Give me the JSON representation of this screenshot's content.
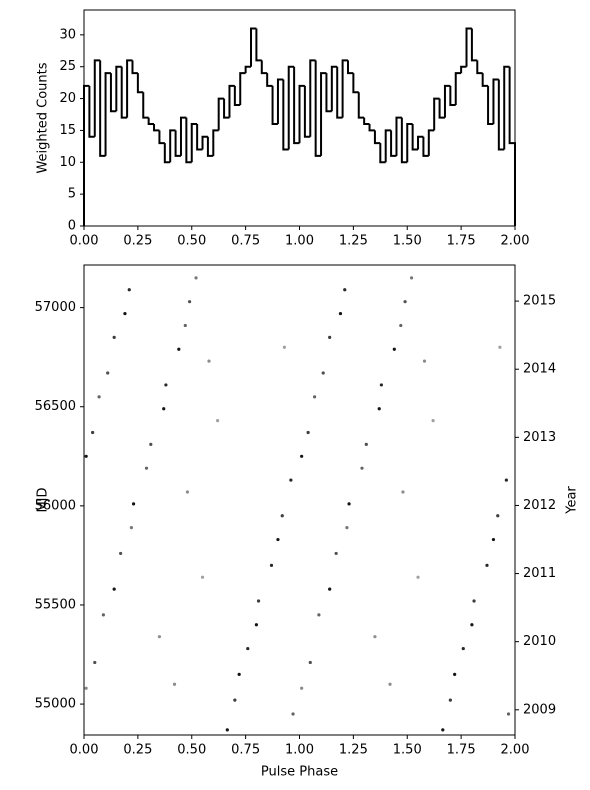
{
  "chart_data": [
    {
      "type": "histogram",
      "ylabel": "Weighted Counts",
      "bins": [
        0,
        0.025,
        0.05,
        0.075,
        0.1,
        0.125,
        0.15,
        0.175,
        0.2,
        0.225,
        0.25,
        0.275,
        0.3,
        0.325,
        0.35,
        0.375,
        0.4,
        0.425,
        0.45,
        0.475,
        0.5,
        0.525,
        0.55,
        0.575,
        0.6,
        0.625,
        0.65,
        0.675,
        0.7,
        0.725,
        0.75,
        0.775,
        0.8,
        0.825,
        0.85,
        0.875,
        0.9,
        0.925,
        0.95,
        0.975,
        1,
        1.025,
        1.05,
        1.075,
        1.1,
        1.125,
        1.15,
        1.175,
        1.2,
        1.225,
        1.25,
        1.275,
        1.3,
        1.325,
        1.35,
        1.375,
        1.4,
        1.425,
        1.45,
        1.475,
        1.5,
        1.525,
        1.55,
        1.575,
        1.6,
        1.625,
        1.65,
        1.675,
        1.7,
        1.725,
        1.75,
        1.775,
        1.8,
        1.825,
        1.85,
        1.875,
        1.9,
        1.925,
        1.95,
        1.975,
        2
      ],
      "counts": [
        22,
        14,
        26,
        11,
        24,
        18,
        25,
        17,
        26,
        24,
        21,
        17,
        16,
        15,
        13,
        10,
        15,
        11,
        17,
        10,
        16,
        12,
        14,
        11,
        15,
        20,
        17,
        22,
        19,
        24,
        25,
        31,
        26,
        24,
        22,
        16,
        23,
        12,
        25,
        13,
        22,
        14,
        26,
        11,
        24,
        18,
        25,
        17,
        26,
        24,
        21,
        17,
        16,
        15,
        13,
        10,
        15,
        11,
        17,
        10,
        16,
        12,
        14,
        11,
        15,
        20,
        17,
        22,
        19,
        24,
        25,
        31,
        26,
        24,
        22,
        16,
        23,
        12,
        25,
        13
      ],
      "color": "#000000",
      "xlim": [
        0,
        2
      ],
      "ylim": [
        0,
        33.9
      ],
      "xticks": [
        {
          "value": 0,
          "label": "0.00"
        },
        {
          "value": 0.25,
          "label": "0.25"
        },
        {
          "value": 0.5,
          "label": "0.50"
        },
        {
          "value": 0.75,
          "label": "0.75"
        },
        {
          "value": 1,
          "label": "1.00"
        },
        {
          "value": 1.25,
          "label": "1.25"
        },
        {
          "value": 1.5,
          "label": "1.50"
        },
        {
          "value": 1.75,
          "label": "1.75"
        },
        {
          "value": 2,
          "label": "2.00"
        }
      ],
      "yticks": [
        0,
        5,
        10,
        15,
        20,
        25,
        30
      ]
    },
    {
      "type": "scatter",
      "xlabel": "Pulse Phase",
      "ylabel": "MJD",
      "y2label": "Year",
      "x": [
        0.665,
        0.97,
        0.7,
        0.01,
        0.72,
        0.05,
        0.76,
        0.35,
        0.8,
        0.09,
        0.81,
        0.14,
        0.55,
        0.87,
        0.17,
        0.9,
        0.22,
        0.92,
        0.23,
        0.48,
        0.96,
        0.29,
        0.01,
        0.31,
        0.04,
        0.62,
        0.37,
        0.07,
        0.38,
        0.11,
        0.58,
        0.44,
        0.14,
        0.47,
        0.19,
        0.49,
        0.21,
        0.52,
        0.42,
        0.93,
        1.665,
        1.97,
        1.7,
        1.01,
        1.72,
        1.05,
        1.76,
        1.35,
        1.8,
        1.09,
        1.81,
        1.14,
        1.55,
        1.87,
        1.17,
        1.9,
        1.22,
        1.92,
        1.23,
        1.48,
        1.96,
        1.29,
        1.01,
        1.31,
        1.04,
        1.62,
        1.37,
        1.07,
        1.38,
        1.11,
        1.58,
        1.44,
        1.14,
        1.47,
        1.19,
        1.49,
        1.21,
        1.52,
        1.42,
        1.93
      ],
      "y": [
        54870,
        54950,
        55020,
        55080,
        55150,
        55210,
        55280,
        55340,
        55400,
        55450,
        55520,
        55580,
        55640,
        55700,
        55760,
        55830,
        55890,
        55950,
        56010,
        56070,
        56130,
        56190,
        56250,
        56310,
        56370,
        56430,
        56490,
        56550,
        56610,
        56670,
        56730,
        56790,
        56850,
        56910,
        56970,
        57030,
        57090,
        57150,
        55100,
        56800,
        54870,
        54950,
        55020,
        55080,
        55150,
        55210,
        55280,
        55340,
        55400,
        55450,
        55520,
        55580,
        55640,
        55700,
        55760,
        55830,
        55890,
        55950,
        56010,
        56070,
        56130,
        56190,
        56250,
        56310,
        56370,
        56430,
        56490,
        56550,
        56610,
        56670,
        56730,
        56790,
        56850,
        56910,
        56970,
        57030,
        57090,
        57150,
        55100,
        56800
      ],
      "weights": [
        0.9,
        0.5,
        0.7,
        0.3,
        0.9,
        0.6,
        0.8,
        0.3,
        0.9,
        0.5,
        0.7,
        0.9,
        0.2,
        0.8,
        0.6,
        0.9,
        0.4,
        0.7,
        0.9,
        0.3,
        0.8,
        0.5,
        0.9,
        0.6,
        0.7,
        0.2,
        0.9,
        0.5,
        0.8,
        0.6,
        0.3,
        0.9,
        0.7,
        0.5,
        0.9,
        0.6,
        0.8,
        0.4,
        0.3,
        0.2,
        0.9,
        0.5,
        0.7,
        0.3,
        0.9,
        0.6,
        0.8,
        0.3,
        0.9,
        0.5,
        0.7,
        0.9,
        0.2,
        0.8,
        0.6,
        0.9,
        0.4,
        0.7,
        0.9,
        0.3,
        0.8,
        0.5,
        0.9,
        0.6,
        0.7,
        0.2,
        0.9,
        0.5,
        0.8,
        0.6,
        0.3,
        0.9,
        0.7,
        0.5,
        0.9,
        0.6,
        0.8,
        0.4,
        0.3,
        0.2
      ],
      "xlim": [
        0,
        2
      ],
      "ylim": [
        54844,
        57215
      ],
      "y2lim": [
        2008.63,
        2015.53
      ],
      "xticks": [
        {
          "value": 0,
          "label": "0.00"
        },
        {
          "value": 0.25,
          "label": "0.25"
        },
        {
          "value": 0.5,
          "label": "0.50"
        },
        {
          "value": 0.75,
          "label": "0.75"
        },
        {
          "value": 1,
          "label": "1.00"
        },
        {
          "value": 1.25,
          "label": "1.25"
        },
        {
          "value": 1.5,
          "label": "1.50"
        },
        {
          "value": 1.75,
          "label": "1.75"
        },
        {
          "value": 2,
          "label": "2.00"
        }
      ],
      "yticks": [
        55000,
        55500,
        56000,
        56500,
        57000
      ],
      "y2ticks": [
        2009,
        2010,
        2011,
        2012,
        2013,
        2014,
        2015
      ]
    }
  ]
}
